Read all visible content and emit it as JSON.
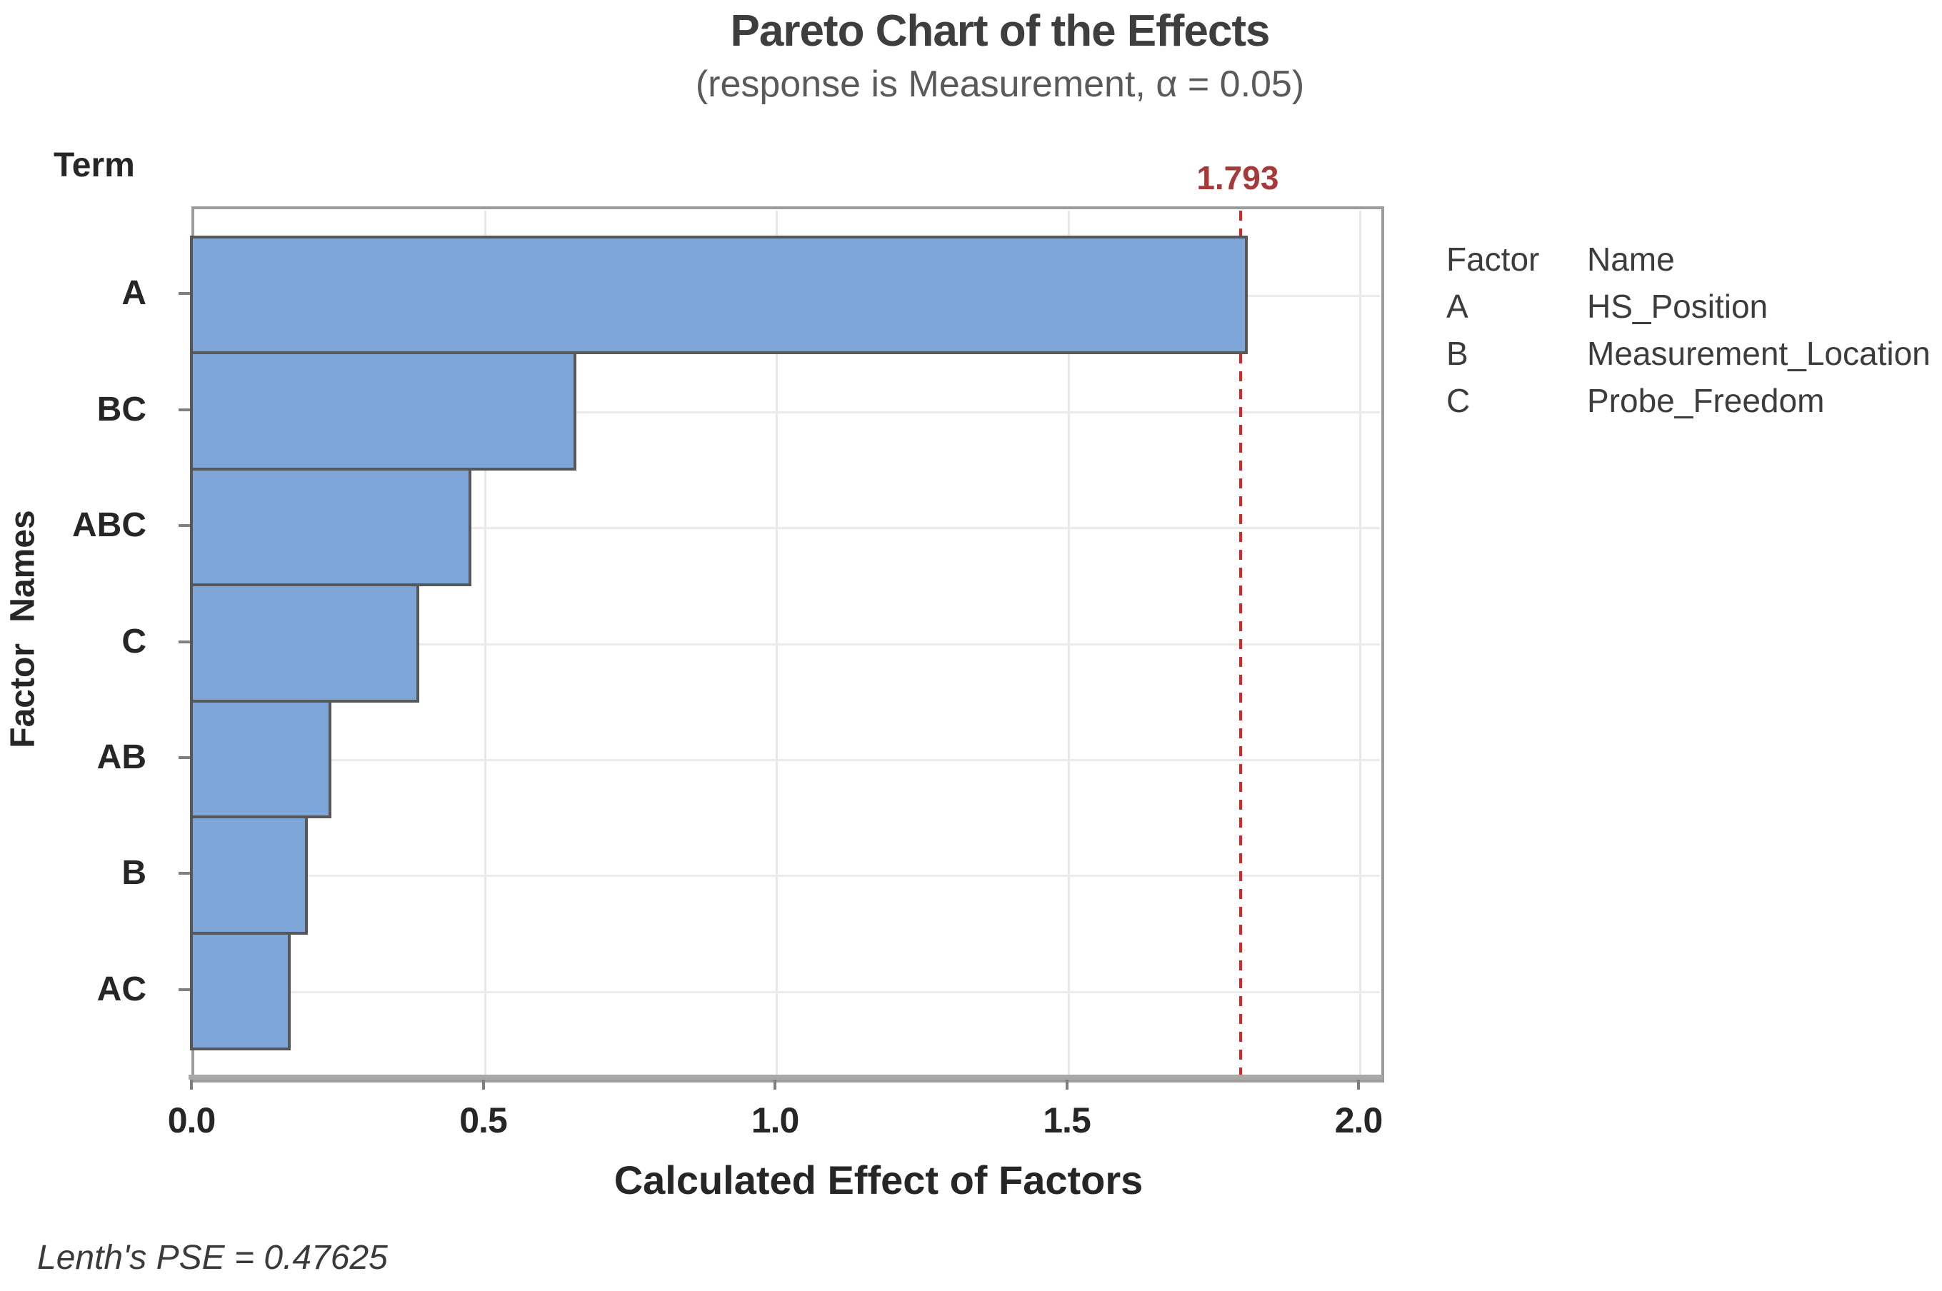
{
  "chart_data": {
    "type": "bar",
    "orientation": "horizontal",
    "title": "Pareto Chart of the Effects",
    "subtitle": "(response is Measurement, α = 0.05)",
    "corner_label": "Term",
    "xlabel": "Calculated Effect of Factors",
    "ylabel": "Factor Names",
    "categories": [
      "A",
      "BC",
      "ABC",
      "C",
      "AB",
      "B",
      "AC"
    ],
    "values": [
      1.81,
      0.66,
      0.48,
      0.39,
      0.24,
      0.2,
      0.17
    ],
    "xlim": [
      0,
      2.0
    ],
    "xticks": [
      0.0,
      0.5,
      1.0,
      1.5,
      2.0
    ],
    "xtick_labels": [
      "0.0",
      "0.5",
      "1.0",
      "1.5",
      "2.0"
    ],
    "grid": "on",
    "legend_position": "right",
    "reference_line": {
      "value": 1.793,
      "label": "1.793"
    },
    "footnote": "Lenth's PSE = 0.47625",
    "legend": {
      "headers": [
        "Factor",
        "Name"
      ],
      "rows": [
        {
          "factor": "A",
          "name": "HS_Position"
        },
        {
          "factor": "B",
          "name": "Measurement_Location"
        },
        {
          "factor": "C",
          "name": "Probe_Freedom"
        }
      ]
    },
    "colors": {
      "bar_fill": "#7da5d8",
      "bar_border": "#575757",
      "reference_line": "#e02222",
      "reference_label": "#a63a3a",
      "frame": "#9c9c9c",
      "grid": "#e8e8e8",
      "title_text": "#3e3e3e",
      "subtitle_text": "#5a5a5a",
      "axis_text": "#262626"
    }
  }
}
